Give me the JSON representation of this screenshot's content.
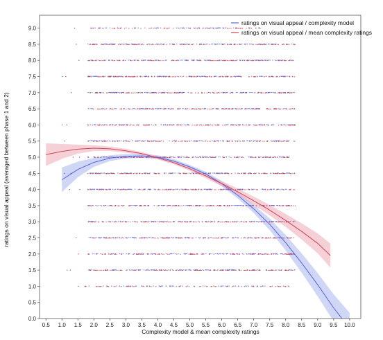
{
  "chart_data": {
    "type": "scatter",
    "xlabel": "Complexity model & mean complexity ratings",
    "ylabel": "ratings on visual appeal (averaged between phase 1 and 2)",
    "xlim": [
      0.3,
      10.35
    ],
    "ylim": [
      0,
      9.4
    ],
    "x_ticks": [
      "0.5",
      "1.0",
      "1.5",
      "2.0",
      "2.5",
      "3.0",
      "3.5",
      "4.0",
      "4.5",
      "5.0",
      "5.5",
      "6.0",
      "6.5",
      "7.0",
      "7.5",
      "8.0",
      "8.5",
      "9.0",
      "9.5",
      "10.0"
    ],
    "y_ticks": [
      "0.0",
      "0.5",
      "1.0",
      "1.5",
      "2.0",
      "2.5",
      "3.0",
      "3.5",
      "4.0",
      "4.5",
      "5.0",
      "5.5",
      "6.0",
      "6.5",
      "7.0",
      "7.5",
      "8.0",
      "8.5",
      "9.0"
    ],
    "grid": false,
    "legend_position": "top-right",
    "series": [
      {
        "name": "ratings on visual appeal / complexity model",
        "color": "#5566dd",
        "band_color": "#aab4ee",
        "scatter_x_range": [
          1.0,
          10.0
        ],
        "fit_x": [
          1.0,
          1.5,
          2.0,
          2.5,
          3.0,
          3.5,
          4.0,
          4.5,
          5.0,
          5.5,
          6.0,
          6.5,
          7.0,
          7.5,
          8.0,
          8.5,
          9.0,
          9.5,
          10.0
        ],
        "fit_y": [
          4.3,
          4.62,
          4.84,
          4.97,
          5.03,
          5.04,
          5.0,
          4.88,
          4.7,
          4.48,
          4.18,
          3.82,
          3.4,
          2.92,
          2.35,
          1.72,
          1.05,
          0.33,
          -0.3
        ],
        "band_halfwidth": [
          0.38,
          0.24,
          0.14,
          0.09,
          0.07,
          0.06,
          0.06,
          0.06,
          0.06,
          0.07,
          0.08,
          0.1,
          0.13,
          0.18,
          0.24,
          0.3,
          0.36,
          0.42,
          0.48
        ]
      },
      {
        "name": "ratings on visual appeal / mean complexity ratings",
        "color": "#cc4455",
        "band_color": "#eeaab6",
        "scatter_x_range": [
          1.0,
          9.4
        ],
        "fit_x": [
          0.5,
          1.0,
          1.5,
          2.0,
          2.5,
          3.0,
          3.5,
          4.0,
          4.5,
          5.0,
          5.5,
          6.0,
          6.5,
          7.0,
          7.5,
          8.0,
          8.5,
          9.0,
          9.4
        ],
        "fit_y": [
          5.08,
          5.18,
          5.25,
          5.28,
          5.26,
          5.2,
          5.11,
          4.98,
          4.83,
          4.64,
          4.42,
          4.18,
          3.93,
          3.65,
          3.36,
          3.04,
          2.7,
          2.33,
          1.95
        ],
        "band_halfwidth": [
          0.35,
          0.23,
          0.14,
          0.09,
          0.07,
          0.06,
          0.05,
          0.05,
          0.05,
          0.06,
          0.07,
          0.08,
          0.1,
          0.13,
          0.16,
          0.2,
          0.25,
          0.31,
          0.37
        ]
      }
    ],
    "rating_levels": [
      1.0,
      1.5,
      2.0,
      2.5,
      3.0,
      3.5,
      4.0,
      4.5,
      5.0,
      5.5,
      6.0,
      6.5,
      7.0,
      7.5,
      8.0,
      8.5,
      9.0
    ]
  }
}
